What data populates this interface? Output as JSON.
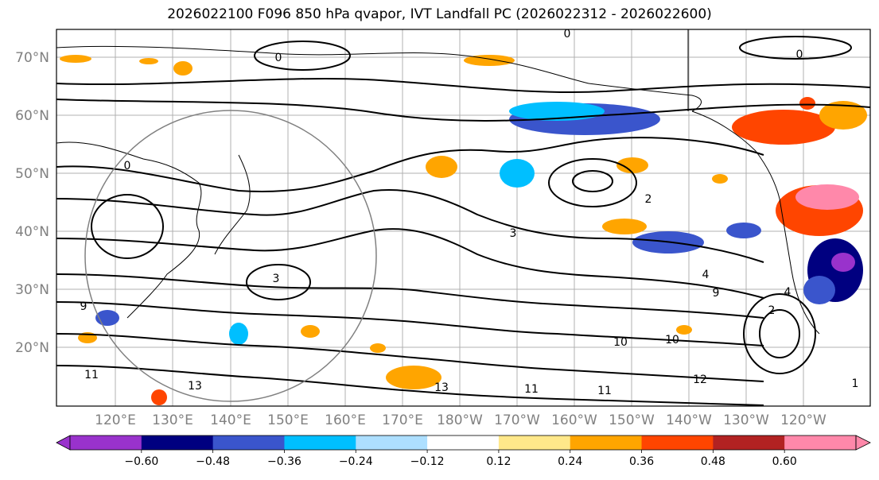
{
  "title": "2026022100 F096 850 hPa qvapor, IVT Landfall PC (2026022312 - 2026022600)",
  "lat_labels": [
    "70°N",
    "60°N",
    "50°N",
    "40°N",
    "30°N",
    "20°N"
  ],
  "lon_labels": [
    "120°E",
    "130°E",
    "140°E",
    "150°E",
    "160°E",
    "170°E",
    "180°W",
    "170°W",
    "160°W",
    "150°W",
    "140°W",
    "130°W",
    "120°W"
  ],
  "contour_labels": [
    "0",
    "0",
    "0",
    "0",
    "2",
    "3",
    "3",
    "4",
    "4",
    "9",
    "9",
    "10",
    "10",
    "11",
    "11",
    "11",
    "12",
    "13",
    "13",
    "2",
    "1"
  ],
  "colorbar": {
    "colors": [
      "#9932CC",
      "#000080",
      "#3A55CC",
      "#00BFFF",
      "#ADDFFF",
      "#FFFFFF",
      "#FFE88A",
      "#FFA500",
      "#FF4500",
      "#B22222",
      "#FF88AA"
    ],
    "tick_labels": [
      "−0.60",
      "−0.48",
      "−0.36",
      "−0.24",
      "−0.12",
      "0.12",
      "0.24",
      "0.36",
      "0.48",
      "0.60"
    ]
  }
}
